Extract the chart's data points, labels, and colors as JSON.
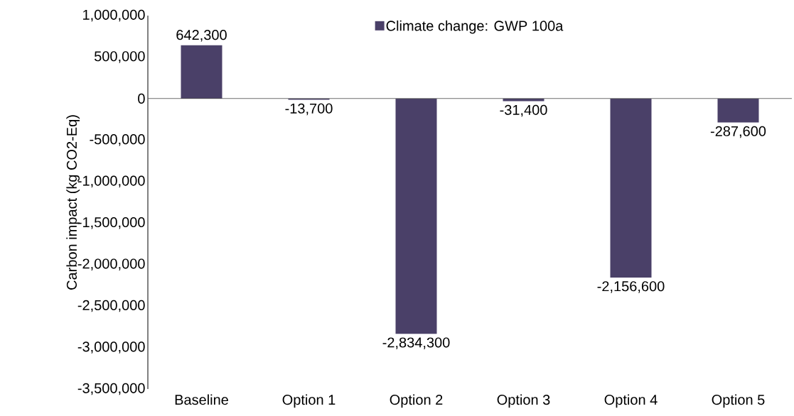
{
  "chart_data": {
    "type": "bar",
    "ylabel": "Carbon impact (kg CO2-Eq)",
    "categories": [
      "Baseline",
      "Option 1",
      "Option 2",
      "Option 3",
      "Option 4",
      "Option 5"
    ],
    "series": [
      {
        "name": "Climate change: GWP 100a",
        "color": "#4a4068",
        "values": [
          642300,
          -13700,
          -2834300,
          -31400,
          -2156600,
          -287600
        ],
        "value_labels": [
          "642,300",
          "-13,700",
          "-2,834,300",
          "-31,400",
          "-2,156,600",
          "-287,600"
        ]
      }
    ],
    "ylim": [
      -3500000,
      1000000
    ],
    "yticks": [
      {
        "value": 1000000,
        "label": "1,000,000"
      },
      {
        "value": 500000,
        "label": "500,000"
      },
      {
        "value": 0,
        "label": "0"
      },
      {
        "value": -500000,
        "label": "-500,000"
      },
      {
        "value": -1000000,
        "label": "-1,000,000"
      },
      {
        "value": -1500000,
        "label": "-1,500,000"
      },
      {
        "value": -2000000,
        "label": "-2,000,000"
      },
      {
        "value": -2500000,
        "label": "-2,500,000"
      },
      {
        "value": -3000000,
        "label": "-3,000,000"
      },
      {
        "value": -3500000,
        "label": "-3,500,000"
      }
    ],
    "legend": "top"
  }
}
